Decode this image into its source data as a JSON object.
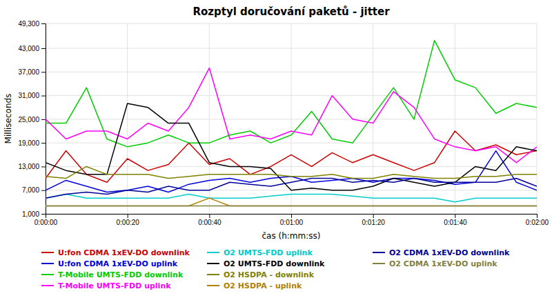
{
  "chart_data": {
    "type": "line",
    "title": "Rozptyl doručování paketů - jitter",
    "ylabel": "Milliseconds",
    "xlabel": "čas (h:mm:ss)",
    "x": [
      0,
      5,
      10,
      15,
      20,
      25,
      30,
      35,
      40,
      45,
      50,
      55,
      60,
      65,
      70,
      75,
      80,
      85,
      90,
      95,
      100,
      105,
      110,
      115,
      120
    ],
    "xlim": [
      0,
      120
    ],
    "xticks": [
      {
        "value": 0,
        "label": "0:00:00"
      },
      {
        "value": 20,
        "label": "0:00:20"
      },
      {
        "value": 40,
        "label": "0:00:40"
      },
      {
        "value": 60,
        "label": "0:01:00"
      },
      {
        "value": 80,
        "label": "0:01:20"
      },
      {
        "value": 100,
        "label": "0:01:40"
      },
      {
        "value": 120,
        "label": "0:02:00"
      }
    ],
    "ylim": [
      1000,
      49300
    ],
    "yticks": [
      {
        "value": 1000,
        "label": "1,000"
      },
      {
        "value": 7000,
        "label": "7,000"
      },
      {
        "value": 13000,
        "label": "13,000"
      },
      {
        "value": 19000,
        "label": "19,000"
      },
      {
        "value": 25000,
        "label": "25,000"
      },
      {
        "value": 31000,
        "label": "31,000"
      },
      {
        "value": 37000,
        "label": "37,000"
      },
      {
        "value": 43000,
        "label": "43,000"
      },
      {
        "value": 49300,
        "label": "49,300"
      }
    ],
    "grid": true,
    "legend": "bottom",
    "series": [
      {
        "name": "U:fon CDMA 1xEV-DO downlink",
        "color": "#cc0000",
        "values": [
          10000,
          17000,
          11000,
          9000,
          15000,
          12000,
          13500,
          19000,
          13500,
          15000,
          11000,
          13000,
          16000,
          13000,
          16500,
          14000,
          16000,
          14000,
          12000,
          14000,
          22000,
          17000,
          18500,
          16000,
          17000
        ]
      },
      {
        "name": "U:fon CDMA 1xEV-DO uplink",
        "color": "#0000dd",
        "values": [
          7000,
          9500,
          8000,
          6500,
          7000,
          8000,
          6500,
          8500,
          9500,
          10000,
          9000,
          10000,
          10500,
          9000,
          9500,
          10000,
          9000,
          10000,
          10000,
          9500,
          8500,
          9000,
          17000,
          9000,
          7000
        ]
      },
      {
        "name": "T-Mobile UMTS-FDD downlink",
        "color": "#00cc00",
        "values": [
          24000,
          24000,
          33000,
          20000,
          18000,
          19000,
          21000,
          19000,
          19000,
          21000,
          22000,
          19000,
          21000,
          27000,
          20000,
          19000,
          26000,
          33000,
          25000,
          45000,
          35000,
          33000,
          26500,
          29000,
          28000
        ]
      },
      {
        "name": "T-Mobile UMTS-FDD uplink",
        "color": "#ff00ff",
        "values": [
          25000,
          20000,
          22000,
          22000,
          20000,
          24000,
          22000,
          28000,
          38000,
          20000,
          21000,
          20000,
          22000,
          21000,
          31000,
          25000,
          24000,
          32000,
          28000,
          20000,
          18000,
          17000,
          18000,
          14000,
          18000
        ]
      },
      {
        "name": "O2 UMTS-FDD uplink",
        "color": "#00cccc",
        "values": [
          5000,
          6000,
          5000,
          5000,
          5000,
          5000,
          5000,
          6000,
          5000,
          5000,
          5000,
          5500,
          6000,
          6000,
          6000,
          5500,
          5000,
          5000,
          5000,
          5000,
          4000,
          5000,
          5000,
          5000,
          5000
        ]
      },
      {
        "name": "O2 UMTS-FDD downlink",
        "color": "#000000",
        "values": [
          14000,
          12000,
          11000,
          11000,
          29000,
          28000,
          24000,
          24000,
          14000,
          13000,
          13000,
          12500,
          7000,
          7500,
          7000,
          7000,
          8000,
          10000,
          9000,
          8000,
          9000,
          13000,
          12000,
          18000,
          17000
        ]
      },
      {
        "name": "O2 HSDPA - downlink",
        "color": "#808000",
        "values": [
          10500,
          10000,
          13000,
          11000,
          11000,
          11000,
          10000,
          10500,
          11000,
          11000,
          11000,
          11000,
          10500,
          10500,
          11000,
          10000,
          10000,
          11000,
          10500,
          10000,
          10000,
          10500,
          10500,
          11000,
          11000
        ]
      },
      {
        "name": "O2 HSDPA - uplink",
        "color": "#b08000",
        "values": [
          3000,
          3000,
          3000,
          3000,
          3000,
          3000,
          3000,
          3000,
          5000,
          3000,
          3000,
          3000,
          3000,
          3000,
          3000,
          3000,
          3000,
          3000,
          3000,
          3000,
          3000,
          3000,
          3000,
          3000,
          3000
        ]
      },
      {
        "name": "O2 CDMA 1xEV-DO downlink",
        "color": "#000099",
        "values": [
          5000,
          6000,
          6500,
          6000,
          7000,
          6500,
          8000,
          7000,
          7000,
          9000,
          8500,
          8000,
          9000,
          10000,
          10000,
          9000,
          9500,
          9000,
          10000,
          9000,
          9000,
          9000,
          9000,
          10000,
          8000
        ]
      },
      {
        "name": "O2 CDMA 1xEV-DO uplink",
        "color": "#808040",
        "values": [
          3000,
          3000,
          3000,
          3000,
          3000,
          3000,
          3000,
          3000,
          3000,
          3000,
          3000,
          3000,
          3000,
          3000,
          3000,
          3000,
          3000,
          3000,
          3000,
          3000,
          3000,
          3000,
          3000,
          3000,
          3000
        ]
      }
    ]
  }
}
